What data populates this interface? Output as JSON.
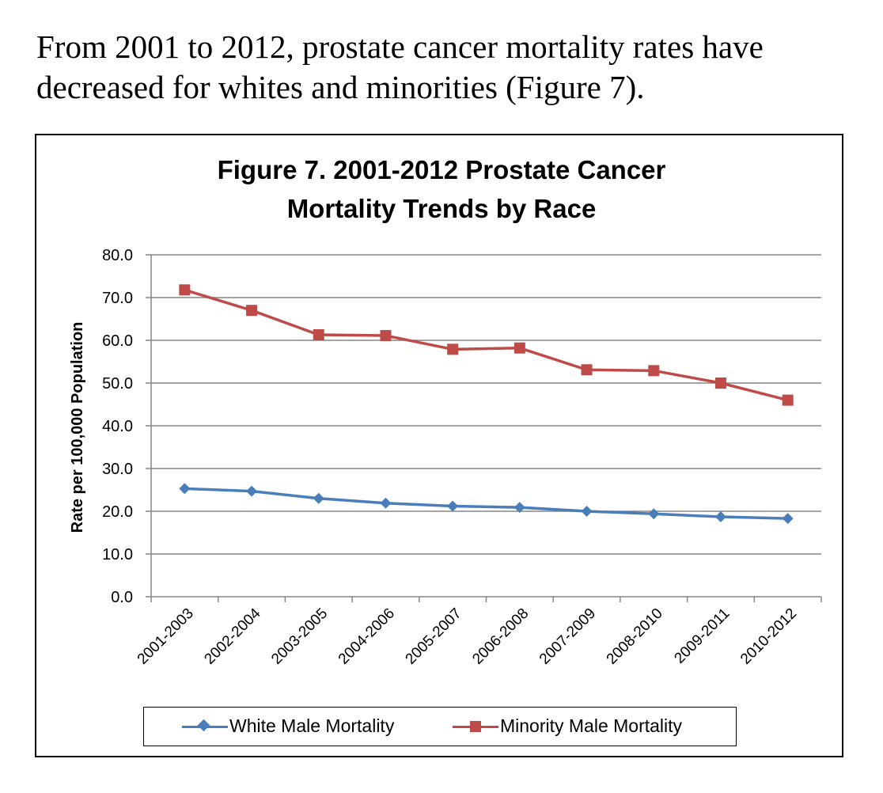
{
  "intro_text": {
    "line1": "From 2001 to 2012, prostate cancer mortality rates have",
    "line2": "decreased for whites and minorities (Figure 7)."
  },
  "chart_data": {
    "type": "line",
    "title_line1": "Figure 7.  2001-2012 Prostate Cancer",
    "title_line2": "Mortality Trends by Race",
    "ylabel": "Rate per 100,000 Population",
    "xlabel": "",
    "ylim": [
      0,
      80
    ],
    "y_ticks": [
      "0.0",
      "10.0",
      "20.0",
      "30.0",
      "40.0",
      "50.0",
      "60.0",
      "70.0",
      "80.0"
    ],
    "categories": [
      "2001-2003",
      "2002-2004",
      "2003-2005",
      "2004-2006",
      "2005-2007",
      "2006-2008",
      "2007-2009",
      "2008-2010",
      "2009-2011",
      "2010-2012"
    ],
    "grid": true,
    "legend_position": "bottom",
    "series": [
      {
        "name": "White Male Mortality",
        "color": "#4a7ebb",
        "marker": "diamond",
        "values": [
          25.3,
          24.7,
          23.0,
          21.9,
          21.2,
          20.9,
          20.0,
          19.4,
          18.7,
          18.3
        ]
      },
      {
        "name": "Minority Male Mortality",
        "color": "#be4b48",
        "marker": "square",
        "values": [
          71.8,
          67.0,
          61.3,
          61.1,
          57.9,
          58.2,
          53.1,
          52.9,
          50.0,
          46.0
        ]
      }
    ]
  }
}
